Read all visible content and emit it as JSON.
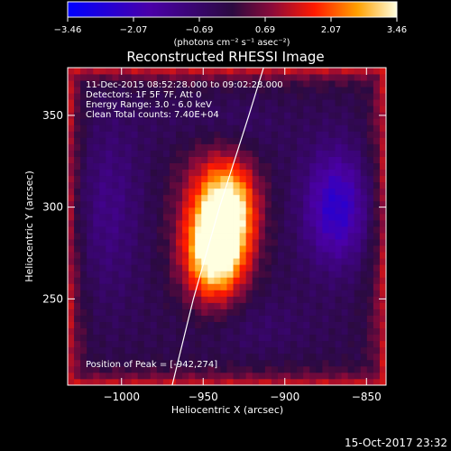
{
  "chart_data": {
    "type": "heatmap",
    "title": "Reconstructed RHESSI Image",
    "xlabel": "Heliocentric X (arcsec)",
    "ylabel": "Heliocentric Y (arcsec)",
    "xlim": [
      -1033,
      -838
    ],
    "ylim": [
      203,
      376
    ],
    "x_ticks": [
      -1000,
      -950,
      -900,
      -850
    ],
    "x_tick_labels": [
      "−1000",
      "−950",
      "−900",
      "−850"
    ],
    "y_ticks": [
      250,
      300,
      350
    ],
    "y_tick_labels": [
      "250",
      "300",
      "350"
    ],
    "colorbar": {
      "range": [
        -3.46,
        3.46
      ],
      "tick_labels": [
        "−3.46",
        "−2.07",
        "−0.69",
        "0.69",
        "2.07",
        "3.46"
      ],
      "unit_label": "(photons cm⁻² s⁻¹ asec⁻²)"
    },
    "annotations": [
      "11-Dec-2015 08:52:28.000 to 09:02:28.000",
      "Detectors: 1F 5F 7F, Att 0",
      "Energy Range: 3.0 - 6.0 keV",
      "Clean     Total counts: 7.40E+04"
    ],
    "peak_label": "Position of Peak = [-942,274]",
    "peak": [
      -942,
      274
    ],
    "sources": [
      {
        "x": -942,
        "y": 274,
        "peak": 3.46,
        "sx": 13,
        "sy": 18
      },
      {
        "x": -933,
        "y": 301,
        "peak": 2.9,
        "sx": 12,
        "sy": 18
      },
      {
        "x": -948,
        "y": 298,
        "peak": 1.4,
        "sx": 15,
        "sy": 28
      }
    ],
    "negative_lobes": [
      {
        "x": -868,
        "y": 300,
        "peak": -2.2,
        "sx": 14,
        "sy": 22
      },
      {
        "x": -1010,
        "y": 300,
        "peak": -0.9,
        "sx": 15,
        "sy": 35
      },
      {
        "x": -940,
        "y": 345,
        "peak": -0.5,
        "sx": 25,
        "sy": 12
      },
      {
        "x": -920,
        "y": 235,
        "peak": -0.4,
        "sx": 25,
        "sy": 12
      }
    ],
    "limb_curve": [
      [
        -969,
        203
      ],
      [
        -956,
        250
      ],
      [
        -940,
        300
      ],
      [
        -922,
        350
      ],
      [
        -913,
        376
      ]
    ],
    "footer_date": "15-Oct-2017 23:32"
  }
}
